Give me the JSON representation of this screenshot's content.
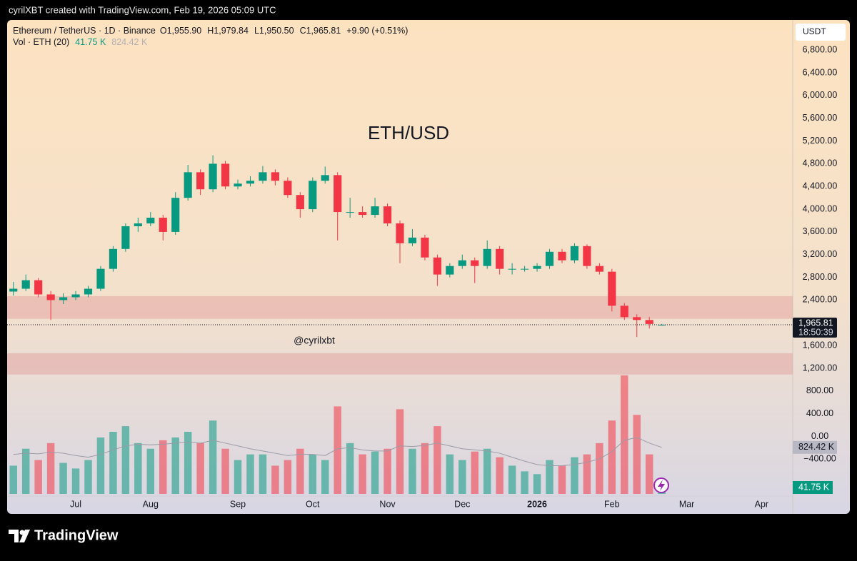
{
  "header": {
    "caption": "cyrilXBT created with TradingView.com, Feb 19, 2026 05:09 UTC"
  },
  "footer": {
    "brand": "TradingView"
  },
  "chart_data": {
    "type": "candlestick",
    "title": "ETH/USD",
    "symbol": "Ethereum / TetherUS · 1D · Binance",
    "ohlc_text": [
      "O1,955.90",
      "H1,979.84",
      "L1,950.50",
      "C1,965.81"
    ],
    "change_text": "+9.90 (+0.51%)",
    "volume_title": "Vol · ETH (20)",
    "watermark": "@cyrilxbt",
    "currency": "USDT",
    "countdown": "18:50:39",
    "up_color": "#089981",
    "down_color": "#f23645",
    "zone_color": "#e39a98",
    "categories": [
      null,
      null,
      null,
      null,
      null,
      "Jul",
      null,
      null,
      null,
      null,
      null,
      "Aug",
      null,
      null,
      null,
      null,
      null,
      null,
      "Sep",
      null,
      null,
      null,
      null,
      null,
      "Oct",
      null,
      null,
      null,
      null,
      null,
      "Nov",
      null,
      null,
      null,
      null,
      null,
      "Dec",
      null,
      null,
      null,
      null,
      null,
      "2026",
      null,
      null,
      null,
      null,
      null,
      "Feb",
      null,
      null,
      null,
      null,
      null,
      "Mar",
      null,
      null,
      null,
      null,
      null,
      "Apr",
      null,
      null
    ],
    "ohlc": [
      [
        2550,
        2720,
        2480,
        2600
      ],
      [
        2600,
        2850,
        2560,
        2750
      ],
      [
        2750,
        2790,
        2450,
        2500
      ],
      [
        2500,
        2560,
        2050,
        2400
      ],
      [
        2400,
        2520,
        2330,
        2450
      ],
      [
        2450,
        2560,
        2400,
        2500
      ],
      [
        2500,
        2650,
        2450,
        2600
      ],
      [
        2600,
        3000,
        2560,
        2950
      ],
      [
        2950,
        3350,
        2900,
        3300
      ],
      [
        3300,
        3750,
        3250,
        3700
      ],
      [
        3700,
        3850,
        3600,
        3750
      ],
      [
        3750,
        3950,
        3700,
        3850
      ],
      [
        3850,
        3900,
        3450,
        3600
      ],
      [
        3600,
        4300,
        3550,
        4200
      ],
      [
        4200,
        4780,
        4150,
        4650
      ],
      [
        4650,
        4700,
        4250,
        4350
      ],
      [
        4350,
        4950,
        4300,
        4800
      ],
      [
        4800,
        4850,
        4350,
        4400
      ],
      [
        4400,
        4520,
        4350,
        4450
      ],
      [
        4450,
        4580,
        4400,
        4500
      ],
      [
        4500,
        4760,
        4450,
        4650
      ],
      [
        4650,
        4700,
        4420,
        4500
      ],
      [
        4500,
        4560,
        4200,
        4250
      ],
      [
        4250,
        4300,
        3850,
        4000
      ],
      [
        4000,
        4560,
        3950,
        4500
      ],
      [
        4500,
        4750,
        4450,
        4600
      ],
      [
        4600,
        4650,
        3450,
        3950
      ],
      [
        3950,
        4200,
        3850,
        3950
      ],
      [
        3950,
        4050,
        3850,
        3900
      ],
      [
        3900,
        4200,
        3850,
        4050
      ],
      [
        4050,
        4100,
        3700,
        3750
      ],
      [
        3750,
        3800,
        3050,
        3400
      ],
      [
        3400,
        3650,
        3350,
        3500
      ],
      [
        3500,
        3550,
        3100,
        3150
      ],
      [
        3150,
        3200,
        2650,
        2850
      ],
      [
        2850,
        3050,
        2800,
        3000
      ],
      [
        3000,
        3200,
        2950,
        3100
      ],
      [
        3100,
        3150,
        2700,
        3000
      ],
      [
        3000,
        3450,
        2950,
        3300
      ],
      [
        3300,
        3350,
        2850,
        2950
      ],
      [
        2950,
        3050,
        2850,
        2950
      ],
      [
        2950,
        3000,
        2900,
        2950
      ],
      [
        2950,
        3050,
        2900,
        3000
      ],
      [
        3000,
        3300,
        2950,
        3250
      ],
      [
        3250,
        3300,
        3050,
        3100
      ],
      [
        3100,
        3400,
        3050,
        3350
      ],
      [
        3350,
        3380,
        2950,
        3000
      ],
      [
        3000,
        3050,
        2850,
        2900
      ],
      [
        2900,
        2950,
        2200,
        2300
      ],
      [
        2300,
        2350,
        2050,
        2100
      ],
      [
        2100,
        2150,
        1750,
        2050
      ],
      [
        2050,
        2100,
        1900,
        1980
      ],
      [
        1955.9,
        1979.84,
        1950.5,
        1965.81
      ],
      null,
      null,
      null,
      null,
      null,
      null,
      null,
      null,
      null,
      null
    ],
    "volume": [
      500,
      800,
      600,
      900,
      550,
      450,
      600,
      1000,
      1100,
      1200,
      900,
      800,
      950,
      1000,
      1100,
      900,
      1300,
      800,
      600,
      700,
      700,
      500,
      600,
      800,
      700,
      600,
      1550,
      900,
      700,
      750,
      800,
      1500,
      800,
      900,
      1200,
      700,
      600,
      750,
      800,
      650,
      500,
      400,
      350,
      600,
      500,
      650,
      700,
      900,
      1300,
      2100,
      1400,
      700,
      41.75,
      null,
      null,
      null,
      null,
      null,
      null,
      null,
      null,
      null,
      null
    ],
    "volume_ma": [
      700,
      720,
      710,
      740,
      720,
      680,
      650,
      700,
      780,
      850,
      880,
      870,
      880,
      900,
      920,
      900,
      950,
      900,
      850,
      800,
      760,
      720,
      680,
      700,
      700,
      680,
      800,
      820,
      780,
      760,
      760,
      850,
      840,
      860,
      900,
      850,
      800,
      780,
      760,
      720,
      650,
      580,
      520,
      500,
      500,
      520,
      560,
      620,
      750,
      950,
      1000,
      900,
      824.42,
      null,
      null,
      null,
      null,
      null,
      null,
      null,
      null,
      null,
      null
    ],
    "volume_ylim": [
      0,
      2200
    ],
    "ylim": [
      -1363,
      7330
    ],
    "yticks": [
      {
        "value": 6800,
        "label": "6,800.00"
      },
      {
        "value": 6400,
        "label": "6,400.00"
      },
      {
        "value": 6000,
        "label": "6,000.00"
      },
      {
        "value": 5600,
        "label": "5,600.00"
      },
      {
        "value": 5200,
        "label": "5,200.00"
      },
      {
        "value": 4800,
        "label": "4,800.00"
      },
      {
        "value": 4400,
        "label": "4,400.00"
      },
      {
        "value": 4000,
        "label": "4,000.00"
      },
      {
        "value": 3600,
        "label": "3,600.00"
      },
      {
        "value": 3200,
        "label": "3,200.00"
      },
      {
        "value": 2800,
        "label": "2,800.00"
      },
      {
        "value": 2400,
        "label": "2,400.00"
      },
      {
        "value": 1600,
        "label": "1,600.00"
      },
      {
        "value": 1200,
        "label": "1,200.00"
      },
      {
        "value": 800,
        "label": "800.00"
      },
      {
        "value": 400,
        "label": "400.00"
      },
      {
        "value": 0,
        "label": "0.00"
      },
      {
        "value": -400,
        "label": "−400.00"
      }
    ],
    "zones": [
      [
        2070,
        2470
      ],
      [
        1090,
        1465
      ]
    ],
    "last_price": {
      "value": 1965.81,
      "label": "1,965.81"
    },
    "last_volume": {
      "value": 41.75,
      "label": "41.75 K"
    },
    "volume_ma_last": {
      "value": 824.42,
      "label": "824.42 K"
    },
    "grid": false
  }
}
